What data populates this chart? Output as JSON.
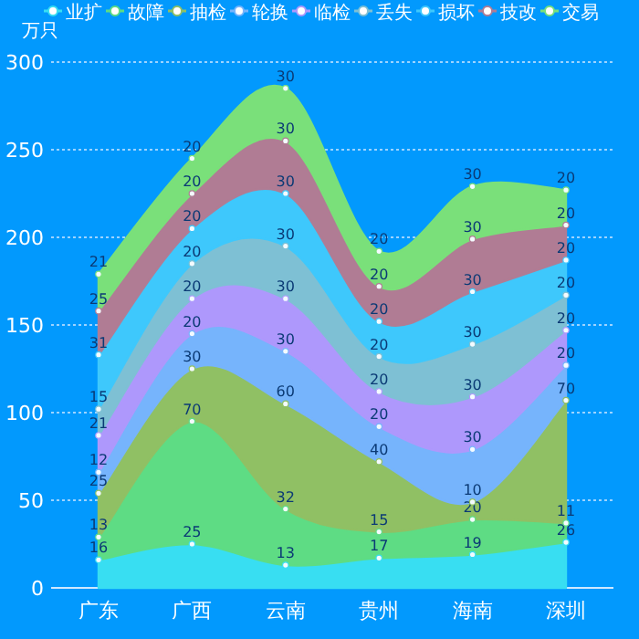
{
  "chart_data": {
    "type": "area",
    "stacked": true,
    "ylabel": "万只",
    "categories": [
      "广东",
      "广西",
      "云南",
      "贵州",
      "海南",
      "深圳"
    ],
    "series": [
      {
        "name": "业扩",
        "color": "#38def2",
        "values": [
          16,
          25,
          13,
          17,
          19,
          26
        ]
      },
      {
        "name": "故障",
        "color": "#5edc84",
        "values": [
          13,
          70,
          32,
          15,
          20,
          11
        ]
      },
      {
        "name": "抽检",
        "color": "#90c064",
        "values": [
          25,
          30,
          60,
          40,
          10,
          70
        ]
      },
      {
        "name": "轮换",
        "color": "#76b4fc",
        "values": [
          12,
          20,
          30,
          20,
          30,
          20
        ]
      },
      {
        "name": "临检",
        "color": "#ae98fc",
        "values": [
          21,
          20,
          30,
          20,
          30,
          20
        ]
      },
      {
        "name": "丢失",
        "color": "#7ec0d4",
        "values": [
          15,
          20,
          30,
          20,
          30,
          20
        ]
      },
      {
        "name": "损坏",
        "color": "#3ec8fc",
        "values": [
          31,
          20,
          30,
          20,
          30,
          20
        ]
      },
      {
        "name": "技改",
        "color": "#b07c94",
        "values": [
          25,
          20,
          30,
          20,
          30,
          20
        ]
      },
      {
        "name": "交易",
        "color": "#7ae07a",
        "values": [
          21,
          20,
          30,
          20,
          30,
          20
        ]
      }
    ],
    "ylim": [
      0,
      300
    ],
    "yticks": [
      0,
      50,
      100,
      150,
      200,
      250,
      300
    ],
    "grid": "y",
    "legend": "top",
    "marker": "circle",
    "data_labels": true
  }
}
